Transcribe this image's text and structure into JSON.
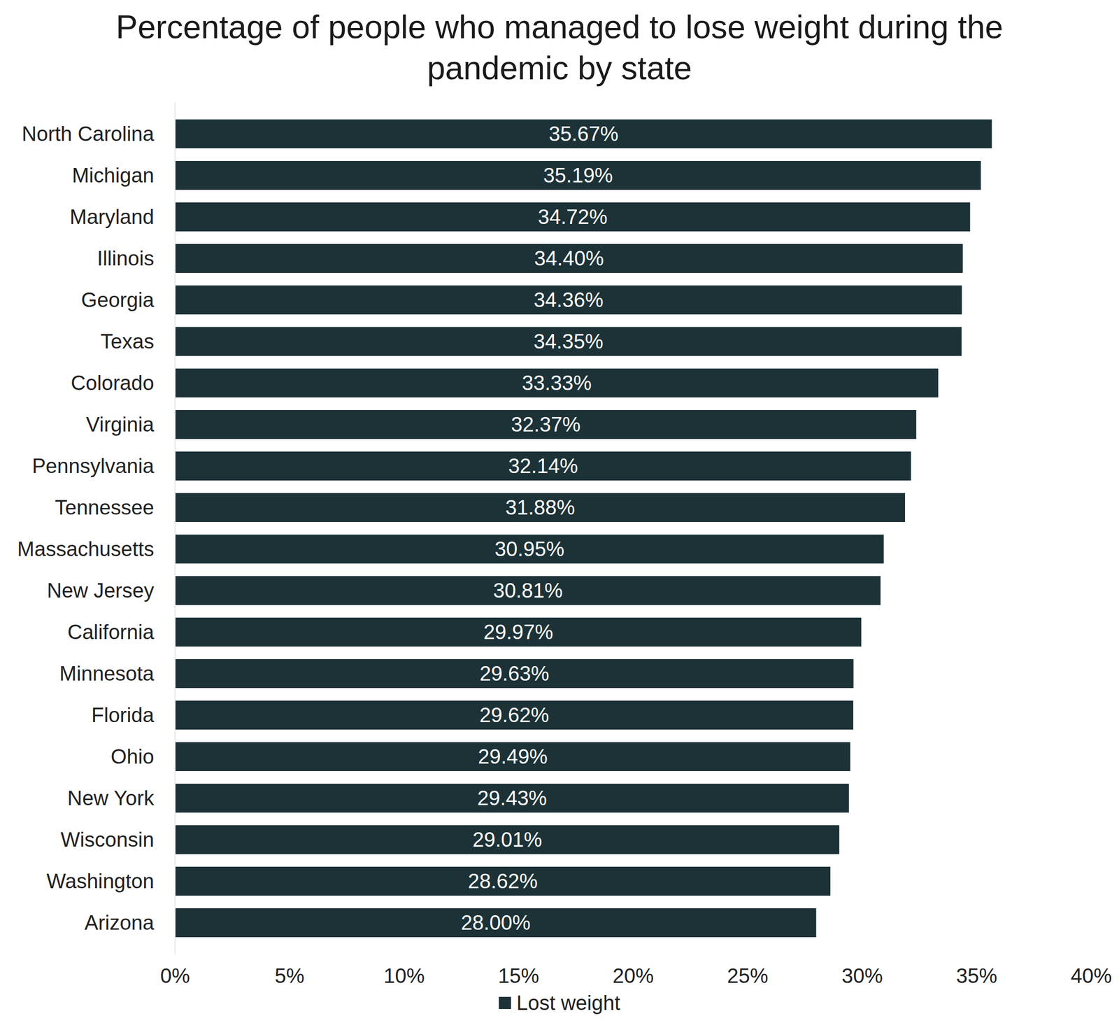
{
  "chart_data": {
    "type": "bar",
    "orientation": "horizontal",
    "title": "Percentage of people who managed to lose weight during the pandemic by state",
    "categories": [
      "North Carolina",
      "Michigan",
      "Maryland",
      "Illinois",
      "Georgia",
      "Texas",
      "Colorado",
      "Virginia",
      "Pennsylvania",
      "Tennessee",
      "Massachusetts",
      "New Jersey",
      "California",
      "Minnesota",
      "Florida",
      "Ohio",
      "New York",
      "Wisconsin",
      "Washington",
      "Arizona"
    ],
    "series": [
      {
        "name": "Lost weight",
        "color": "#1c3237",
        "values": [
          35.67,
          35.19,
          34.72,
          34.4,
          34.36,
          34.35,
          33.33,
          32.37,
          32.14,
          31.88,
          30.95,
          30.81,
          29.97,
          29.63,
          29.62,
          29.49,
          29.43,
          29.01,
          28.62,
          28.0
        ],
        "value_labels": [
          "35.67%",
          "35.19%",
          "34.72%",
          "34.40%",
          "34.36%",
          "34.35%",
          "33.33%",
          "32.37%",
          "32.14%",
          "31.88%",
          "30.95%",
          "30.81%",
          "29.97%",
          "29.63%",
          "29.62%",
          "29.49%",
          "29.43%",
          "29.01%",
          "28.62%",
          "28.00%"
        ]
      }
    ],
    "xlim": [
      0,
      40
    ],
    "xticks": [
      {
        "value": 0,
        "label": "0%"
      },
      {
        "value": 5,
        "label": "5%"
      },
      {
        "value": 10,
        "label": "10%"
      },
      {
        "value": 15,
        "label": "15%"
      },
      {
        "value": 20,
        "label": "20%"
      },
      {
        "value": 25,
        "label": "25%"
      },
      {
        "value": 30,
        "label": "30%"
      },
      {
        "value": 35,
        "label": "35%"
      },
      {
        "value": 40,
        "label": "40%"
      }
    ],
    "data_labels": true,
    "grid": false,
    "legend": "bottom"
  }
}
